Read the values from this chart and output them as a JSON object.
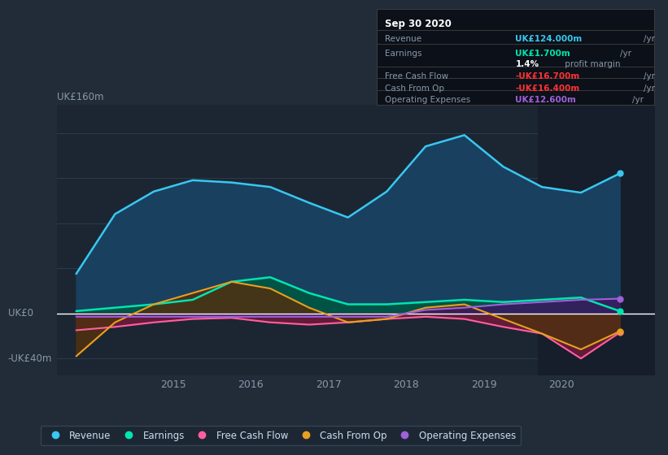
{
  "bg_color": "#222b38",
  "plot_bg_color": "#1c2633",
  "ylim": [
    -55,
    185
  ],
  "xlim": [
    2013.5,
    2021.2
  ],
  "grid_color": "#2d3a4a",
  "series": {
    "Revenue": {
      "color": "#38c8f0",
      "fill_color": "#1a4060",
      "x": [
        2013.75,
        2014.25,
        2014.75,
        2015.25,
        2015.75,
        2016.25,
        2016.75,
        2017.25,
        2017.75,
        2018.25,
        2018.75,
        2019.25,
        2019.75,
        2020.25,
        2020.75
      ],
      "y": [
        35,
        88,
        108,
        118,
        116,
        112,
        98,
        85,
        108,
        148,
        158,
        130,
        112,
        107,
        124
      ]
    },
    "Earnings": {
      "color": "#00e5b0",
      "fill_color": "#005544",
      "x": [
        2013.75,
        2014.25,
        2014.75,
        2015.25,
        2015.75,
        2016.25,
        2016.75,
        2017.25,
        2017.75,
        2018.25,
        2018.75,
        2019.25,
        2019.75,
        2020.25,
        2020.75
      ],
      "y": [
        2,
        5,
        8,
        12,
        28,
        32,
        18,
        8,
        8,
        10,
        12,
        10,
        12,
        14,
        2
      ]
    },
    "FreeCashFlow": {
      "color": "#ff5fa0",
      "fill_color": "#6a1a3a",
      "x": [
        2013.75,
        2014.25,
        2014.75,
        2015.25,
        2015.75,
        2016.25,
        2016.75,
        2017.25,
        2017.75,
        2018.25,
        2018.75,
        2019.25,
        2019.75,
        2020.25,
        2020.75
      ],
      "y": [
        -15,
        -12,
        -8,
        -5,
        -4,
        -8,
        -10,
        -8,
        -5,
        -3,
        -5,
        -12,
        -18,
        -40,
        -17
      ]
    },
    "CashFromOp": {
      "color": "#e8a020",
      "fill_color": "#503010",
      "x": [
        2013.75,
        2014.25,
        2014.75,
        2015.25,
        2015.75,
        2016.25,
        2016.75,
        2017.25,
        2017.75,
        2018.25,
        2018.75,
        2019.25,
        2019.75,
        2020.25,
        2020.75
      ],
      "y": [
        -38,
        -8,
        8,
        18,
        28,
        22,
        5,
        -8,
        -5,
        5,
        8,
        -5,
        -18,
        -32,
        -16
      ]
    },
    "OperatingExpenses": {
      "color": "#a060d8",
      "fill_color": "#3a1a60",
      "x": [
        2013.75,
        2014.25,
        2014.75,
        2015.25,
        2015.75,
        2016.25,
        2016.75,
        2017.25,
        2017.75,
        2018.25,
        2018.75,
        2019.25,
        2019.75,
        2020.25,
        2020.75
      ],
      "y": [
        -3,
        -3,
        -3,
        -3,
        -3,
        -3,
        -3,
        -3,
        -3,
        3,
        5,
        8,
        10,
        12,
        13
      ]
    }
  },
  "ylabel_top": "UK£160m",
  "ylabel_zero": "UK£0",
  "ylabel_bottom": "-UK£40m",
  "ytick_vals": [
    160,
    120,
    80,
    40,
    0,
    -40
  ],
  "xtick_vals": [
    2015,
    2016,
    2017,
    2018,
    2019,
    2020
  ],
  "xtick_labels": [
    "2015",
    "2016",
    "2017",
    "2018",
    "2019",
    "2020"
  ],
  "dark_overlay_x": 2019.7,
  "dark_overlay_color": "#151e2a",
  "info_box": {
    "title": "Sep 30 2020",
    "title_color": "#ffffff",
    "bg_color": "#0c1018",
    "border_color": "#3a3a3a",
    "rows": [
      {
        "label": "Revenue",
        "value": "UK£124.000m",
        "unit": "/yr",
        "value_color": "#38c8f0",
        "divider_after": true
      },
      {
        "label": "Earnings",
        "value": "UK£1.700m",
        "unit": "/yr",
        "value_color": "#00e5b0",
        "divider_after": false
      },
      {
        "label": "",
        "value": "1.4%",
        "unit": " profit margin",
        "value_color": "#ffffff",
        "divider_after": true
      },
      {
        "label": "Free Cash Flow",
        "value": "-UK£16.700m",
        "unit": "/yr",
        "value_color": "#ff3333",
        "divider_after": true
      },
      {
        "label": "Cash From Op",
        "value": "-UK£16.400m",
        "unit": "/yr",
        "value_color": "#ff3333",
        "divider_after": true
      },
      {
        "label": "Operating Expenses",
        "value": "UK£12.600m",
        "unit": "/yr",
        "value_color": "#a060d8",
        "divider_after": false
      }
    ]
  },
  "legend_items": [
    {
      "label": "Revenue",
      "color": "#38c8f0"
    },
    {
      "label": "Earnings",
      "color": "#00e5b0"
    },
    {
      "label": "Free Cash Flow",
      "color": "#ff5fa0"
    },
    {
      "label": "Cash From Op",
      "color": "#e8a020"
    },
    {
      "label": "Operating Expenses",
      "color": "#a060d8"
    }
  ]
}
